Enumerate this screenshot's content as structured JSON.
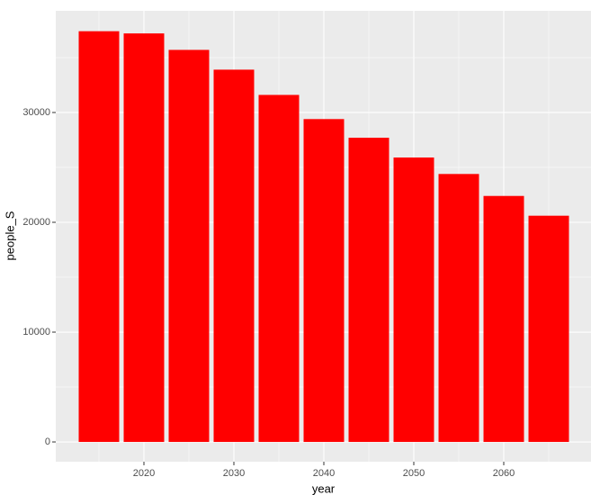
{
  "chart_data": {
    "type": "bar",
    "xlabel": "year",
    "ylabel": "people_S",
    "x": [
      2015,
      2020,
      2025,
      2030,
      2035,
      2040,
      2045,
      2050,
      2055,
      2060,
      2065
    ],
    "values": [
      37400,
      37200,
      35700,
      33900,
      31600,
      29400,
      27700,
      25900,
      24400,
      22400,
      20600
    ],
    "color": "#ff0000",
    "xlim": [
      2010.2,
      2069.7
    ],
    "xticks": [
      2020,
      2030,
      2040,
      2050,
      2060
    ],
    "ylim": [
      -1800,
      39260
    ],
    "yticks": [
      0,
      10000,
      20000,
      30000
    ],
    "grid": true
  }
}
